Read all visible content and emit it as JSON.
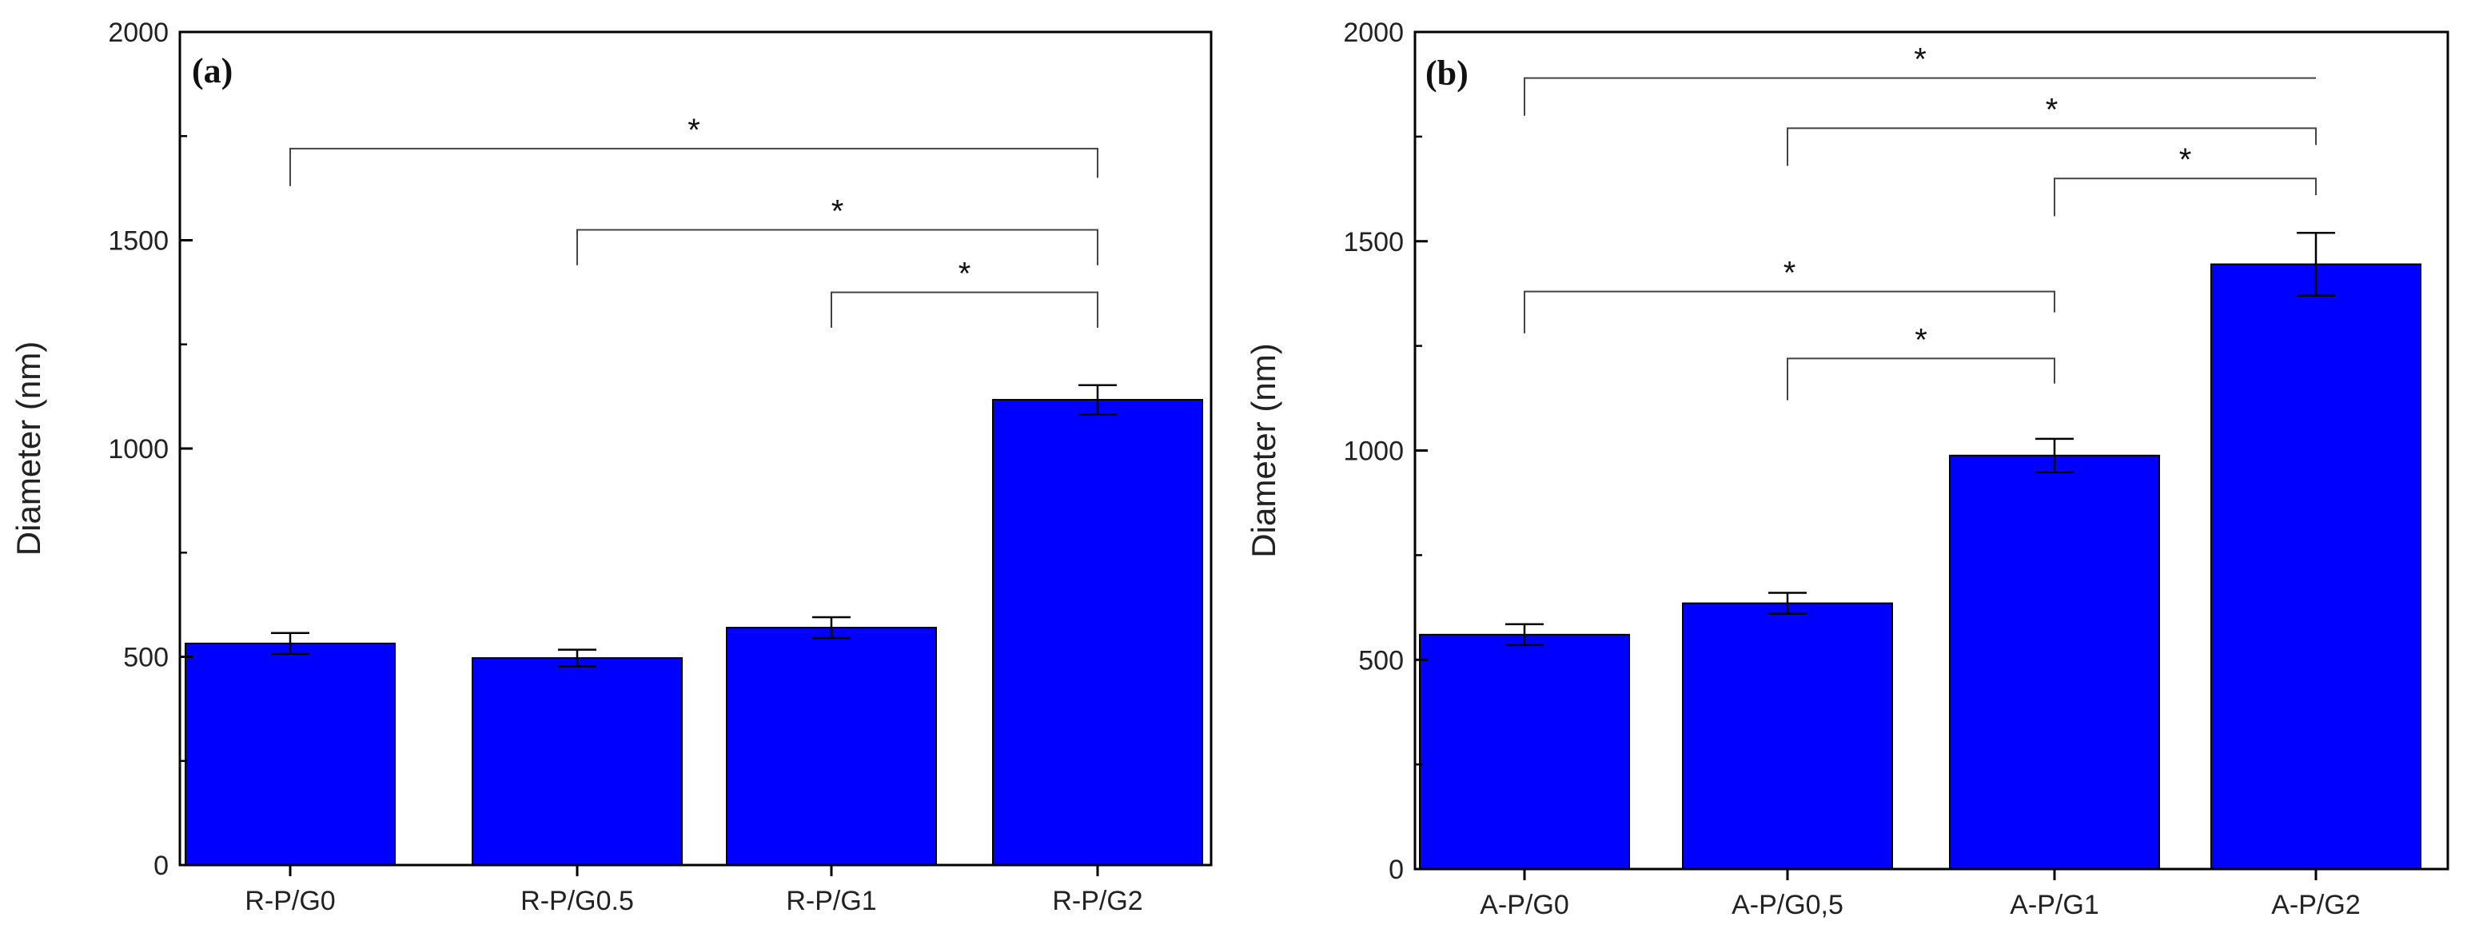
{
  "chart_data": [
    {
      "type": "bar",
      "panel_label": "(a)",
      "categories": [
        "R-P/G0",
        "R-P/G0.5",
        "R-P/G1",
        "R-P/G2"
      ],
      "values": [
        532,
        497,
        570,
        1117
      ],
      "errors": [
        25,
        20,
        25,
        35
      ],
      "ylabel": "Diameter (nm)",
      "xlabel": "",
      "ylim": [
        0,
        2000
      ],
      "yticks": [
        0,
        500,
        1000,
        1500,
        2000
      ],
      "bar_color": "#0000ff",
      "significance": [
        {
          "from": 0,
          "to": 3,
          "start_y": 1630,
          "level": 1720,
          "end_y": 1650,
          "label": "*"
        },
        {
          "from": 1,
          "to": 3,
          "start_y": 1440,
          "level": 1525,
          "end_y": 1440,
          "label": "*"
        },
        {
          "from": 2,
          "to": 3,
          "start_y": 1290,
          "level": 1375,
          "end_y": 1290,
          "label": "*"
        }
      ]
    },
    {
      "type": "bar",
      "panel_label": "(b)",
      "categories": [
        "A-P/G0",
        "A-P/G0,5",
        "A-P/G1",
        "A-P/G2"
      ],
      "values": [
        560,
        635,
        988,
        1445
      ],
      "errors": [
        25,
        25,
        40,
        75
      ],
      "ylabel": "Diameter (nm)",
      "xlabel": "",
      "ylim": [
        0,
        2000
      ],
      "yticks": [
        0,
        500,
        1000,
        1500,
        2000
      ],
      "bar_color": "#0000ff",
      "significance": [
        {
          "from": 0,
          "to": 3,
          "start_y": 1800,
          "level": 1890,
          "end_y": 1890,
          "label": "*"
        },
        {
          "from": 1,
          "to": 3,
          "start_y": 1680,
          "level": 1770,
          "end_y": 1730,
          "label": "*"
        },
        {
          "from": 2,
          "to": 3,
          "start_y": 1560,
          "level": 1650,
          "end_y": 1610,
          "label": "*"
        },
        {
          "from": 0,
          "to": 2,
          "start_y": 1280,
          "level": 1380,
          "end_y": 1330,
          "label": "*"
        },
        {
          "from": 1,
          "to": 2,
          "start_y": 1120,
          "level": 1220,
          "end_y": 1160,
          "label": "*"
        }
      ]
    }
  ]
}
